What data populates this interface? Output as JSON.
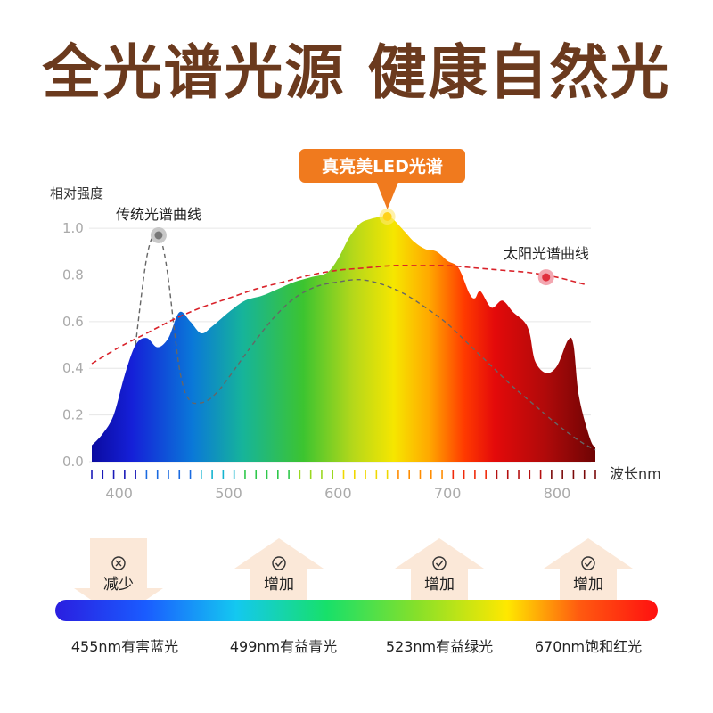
{
  "title": "全光谱光源 健康自然光",
  "colors": {
    "title": "#6b3a1e",
    "badge": "#f07a1e",
    "sun_curve": "#d9222a",
    "traditional_curve": "#666666",
    "axis_text": "#aaaaaa"
  },
  "chart_data": {
    "type": "area",
    "ylabel": "相对强度",
    "xlabel": "波长nm",
    "xlim": [
      375,
      835
    ],
    "ylim": [
      0,
      1.05
    ],
    "x_ticks": [
      400,
      500,
      600,
      700,
      800
    ],
    "y_ticks": [
      0.0,
      0.2,
      0.4,
      0.6,
      0.8,
      1.0
    ],
    "y_tick_labels": [
      "0.0",
      "0.2",
      "0.4",
      "0.6",
      "0.8",
      "1.0"
    ],
    "grid": true,
    "series": [
      {
        "name": "真亮美LED光谱",
        "x": [
          375,
          385,
          395,
          405,
          415,
          425,
          435,
          445,
          455,
          465,
          475,
          485,
          500,
          515,
          530,
          545,
          560,
          575,
          590,
          600,
          610,
          620,
          630,
          640,
          645,
          650,
          660,
          670,
          680,
          690,
          700,
          710,
          720,
          725,
          730,
          740,
          750,
          760,
          770,
          775,
          780,
          790,
          800,
          810,
          815,
          820,
          830,
          835
        ],
        "y": [
          0.07,
          0.12,
          0.2,
          0.37,
          0.5,
          0.53,
          0.49,
          0.53,
          0.64,
          0.6,
          0.55,
          0.58,
          0.64,
          0.69,
          0.71,
          0.74,
          0.77,
          0.79,
          0.81,
          0.87,
          0.96,
          1.02,
          1.04,
          1.05,
          1.05,
          1.04,
          0.99,
          0.94,
          0.91,
          0.9,
          0.86,
          0.83,
          0.72,
          0.7,
          0.73,
          0.66,
          0.69,
          0.64,
          0.6,
          0.55,
          0.43,
          0.38,
          0.41,
          0.52,
          0.5,
          0.28,
          0.1,
          0.06
        ]
      },
      {
        "name": "传统光谱曲线",
        "x": [
          415,
          420,
          425,
          430,
          435,
          440,
          445,
          450,
          455,
          460,
          465,
          470,
          480,
          490,
          500,
          520,
          540,
          560,
          580,
          600,
          620,
          640,
          660,
          680,
          700,
          720,
          740,
          760,
          780,
          800,
          820,
          835
        ],
        "y": [
          0.5,
          0.7,
          0.87,
          0.96,
          0.97,
          0.92,
          0.78,
          0.58,
          0.4,
          0.3,
          0.26,
          0.25,
          0.26,
          0.3,
          0.36,
          0.49,
          0.61,
          0.7,
          0.75,
          0.77,
          0.78,
          0.76,
          0.72,
          0.66,
          0.59,
          0.5,
          0.41,
          0.32,
          0.24,
          0.16,
          0.09,
          0.05
        ]
      },
      {
        "name": "太阳光谱曲线",
        "x": [
          375,
          400,
          425,
          450,
          475,
          500,
          525,
          550,
          575,
          600,
          625,
          650,
          675,
          700,
          725,
          750,
          775,
          800,
          825
        ],
        "y": [
          0.42,
          0.49,
          0.55,
          0.61,
          0.66,
          0.7,
          0.74,
          0.77,
          0.8,
          0.82,
          0.83,
          0.84,
          0.84,
          0.84,
          0.83,
          0.82,
          0.81,
          0.79,
          0.76
        ]
      }
    ],
    "annotations": [
      {
        "text": "真亮美LED光谱",
        "x": 645,
        "y": 1.05
      },
      {
        "text": "传统光谱曲线",
        "x": 436,
        "y": 0.97
      },
      {
        "text": "太阳光谱曲线",
        "x": 790,
        "y": 0.79
      }
    ]
  },
  "arrows": [
    {
      "text": "减少",
      "icon": "x-circle-icon",
      "direction": "down",
      "wavelength_label": "455nm有害蓝光"
    },
    {
      "text": "增加",
      "icon": "check-circle-icon",
      "direction": "up",
      "wavelength_label": "499nm有益青光"
    },
    {
      "text": "增加",
      "icon": "check-circle-icon",
      "direction": "up",
      "wavelength_label": "523nm有益绿光"
    },
    {
      "text": "增加",
      "icon": "check-circle-icon",
      "direction": "up",
      "wavelength_label": "670nm饱和红光"
    }
  ]
}
